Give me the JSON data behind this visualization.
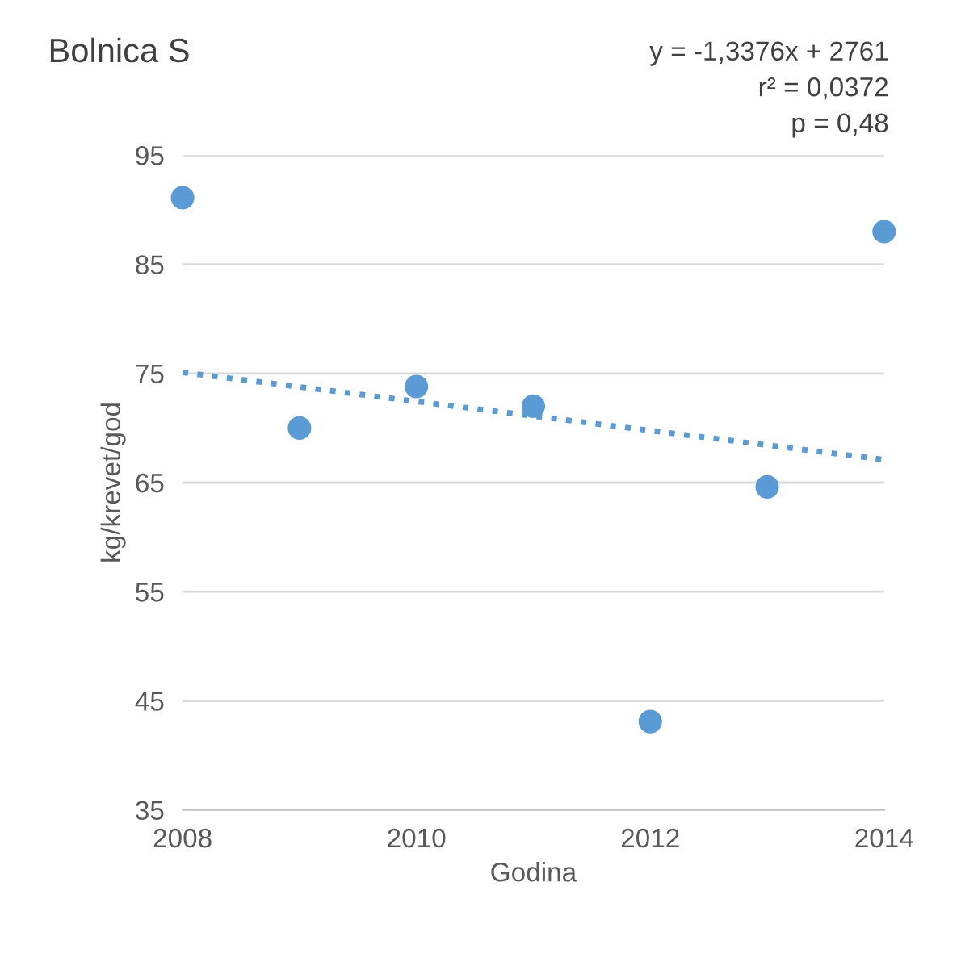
{
  "chart_data": {
    "type": "scatter",
    "title": "Bolnica S",
    "xlabel": "Godina",
    "ylabel": "kg/krevet/god",
    "annotations": [
      "y = -1,3376x + 2761",
      "r² = 0,0372",
      "p = 0,48"
    ],
    "series": [
      {
        "color": "#5b9bd5",
        "x": [
          2008,
          2009,
          2010,
          2011,
          2012,
          2013,
          2014
        ],
        "values": [
          91.1,
          70.0,
          73.8,
          72.0,
          43.1,
          64.6,
          88.0
        ],
        "marker": "circle"
      },
      {
        "type": "line",
        "color": "#5b9bd5",
        "x": [
          2008,
          2014
        ],
        "values": [
          75.1,
          67.1
        ],
        "line_style": "dotted",
        "marker": "none"
      }
    ],
    "xlim": [
      2008,
      2014
    ],
    "xticks": [
      2008,
      2010,
      2012,
      2014
    ],
    "ylim": [
      35,
      95
    ],
    "yticks": [
      35,
      45,
      55,
      65,
      75,
      85,
      95
    ],
    "grid": "y",
    "legend": false
  }
}
